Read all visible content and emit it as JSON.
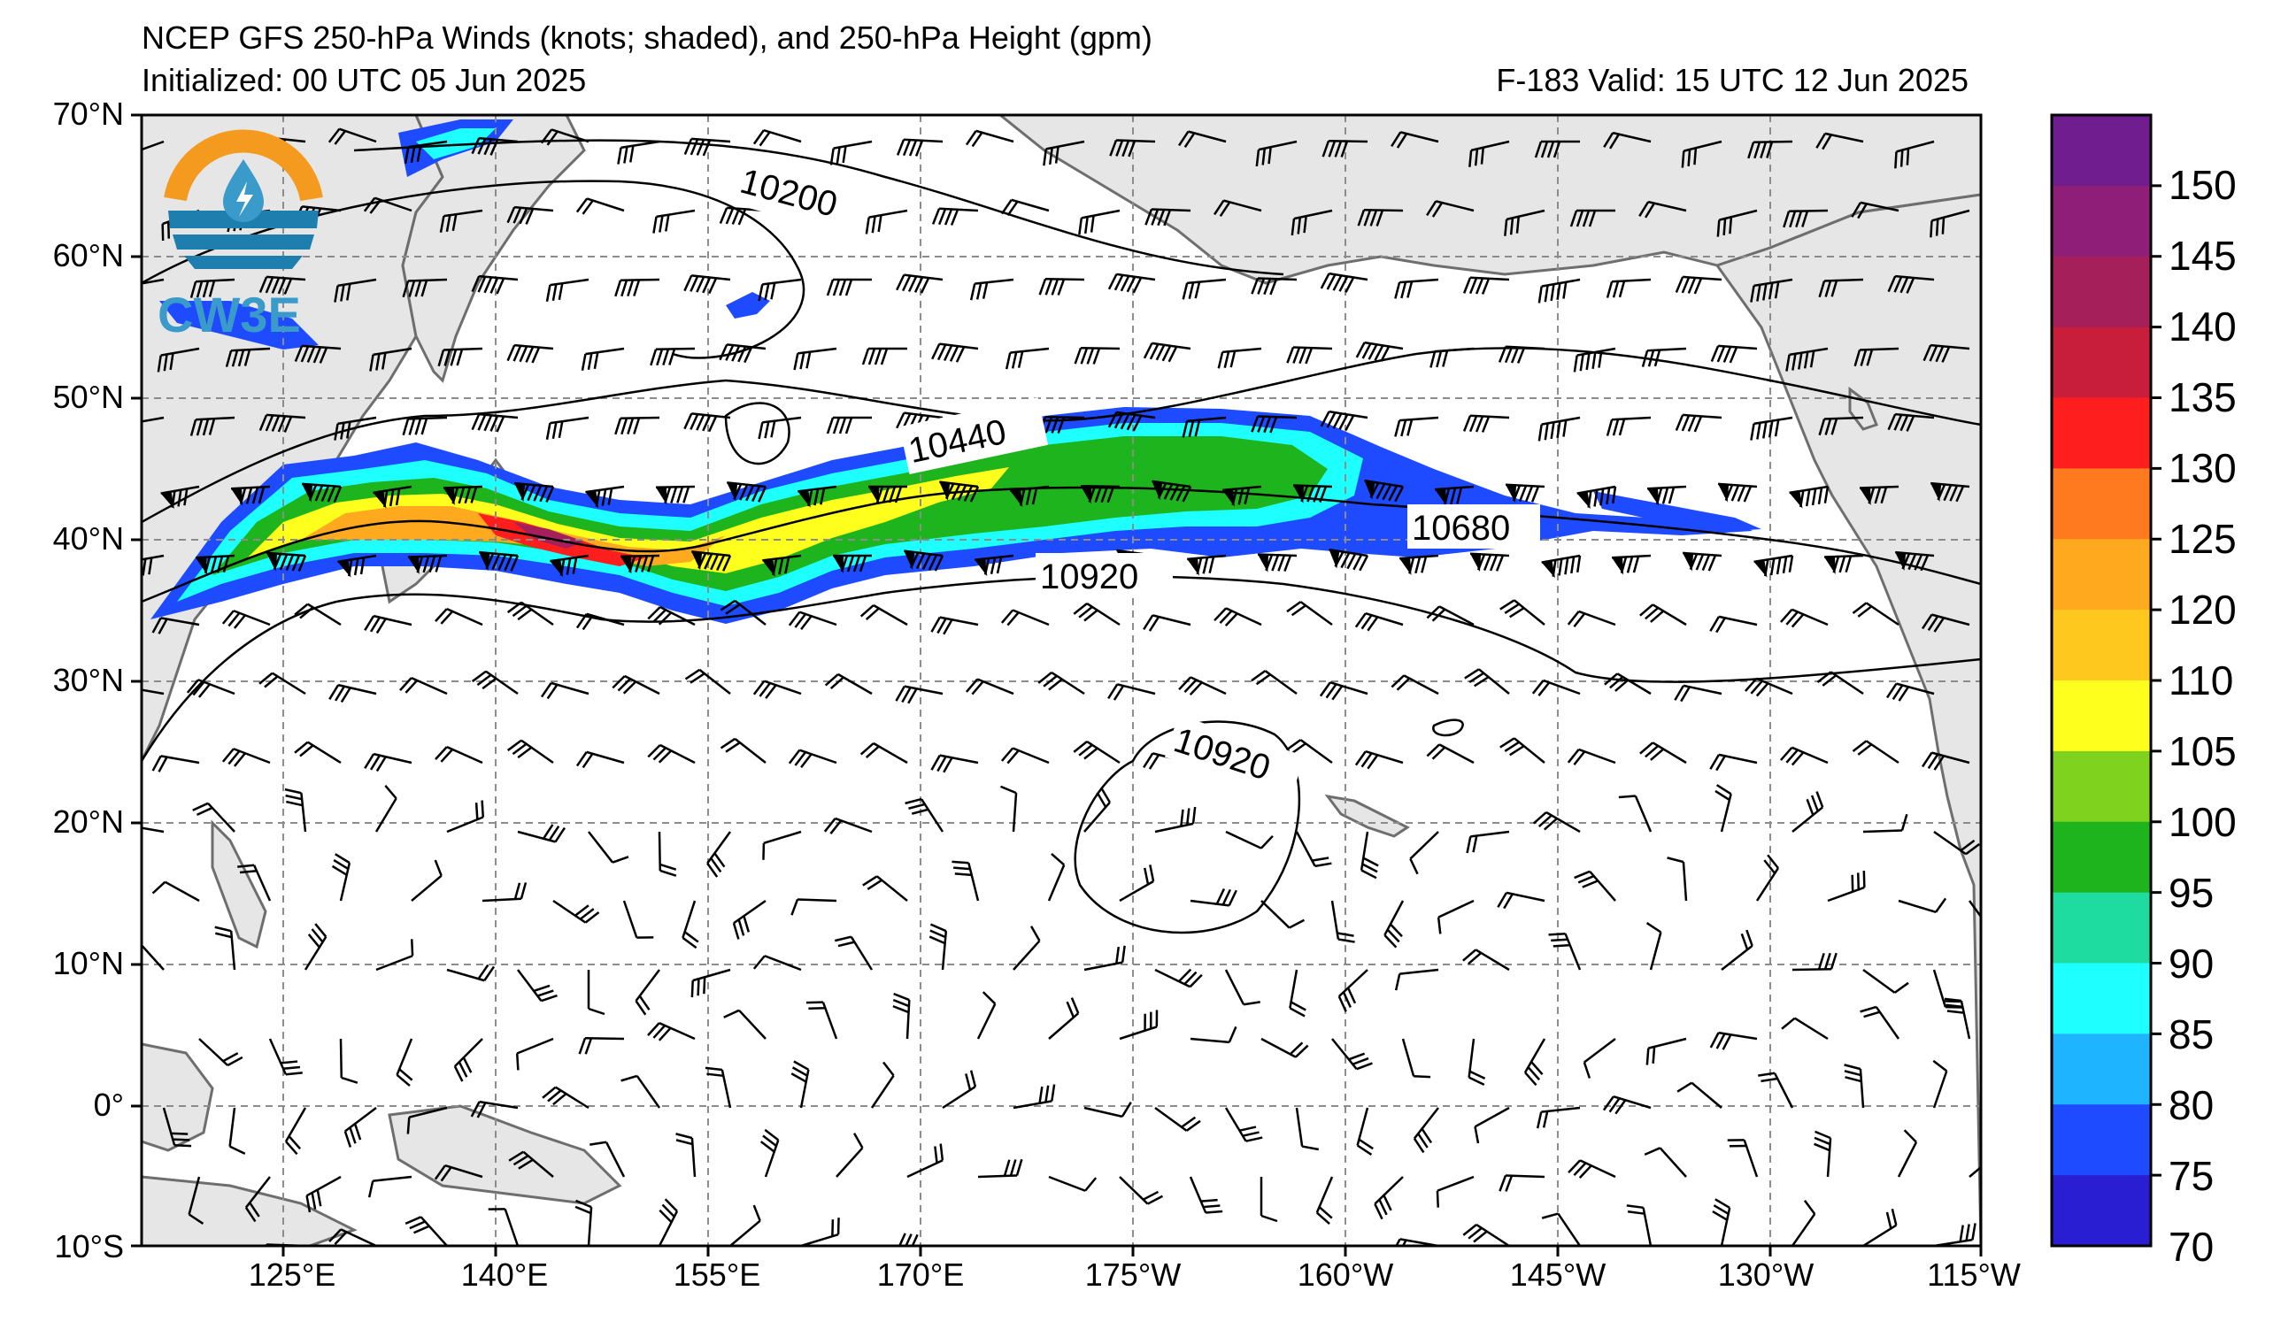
{
  "header": {
    "title": "NCEP GFS 250-hPa Winds (knots; shaded), and 250-hPa Height (gpm)",
    "initialized": "Initialized: 00 UTC 05 Jun 2025",
    "valid": "F-183  Valid: 15 UTC 12 Jun 2025"
  },
  "logo": {
    "text": "CW3E",
    "colors": [
      "#f39a1f",
      "#1e7fae",
      "#3a9ac9"
    ]
  },
  "axes": {
    "lat_labels": [
      "70°N",
      "60°N",
      "50°N",
      "40°N",
      "30°N",
      "20°N",
      "10°N",
      "0°",
      "10°S"
    ],
    "lon_labels": [
      "125°E",
      "140°E",
      "155°E",
      "170°E",
      "175°W",
      "160°W",
      "145°W",
      "130°W",
      "115°W"
    ]
  },
  "contours": {
    "labels": [
      "10200",
      "10440",
      "10680",
      "10920",
      "10920"
    ]
  },
  "colorbar": {
    "labels": [
      "150",
      "145",
      "140",
      "135",
      "130",
      "125",
      "120",
      "110",
      "105",
      "100",
      "95",
      "90",
      "85",
      "80",
      "75",
      "70"
    ],
    "colors": [
      "#6f1d8f",
      "#8e1e78",
      "#a51f5a",
      "#c81e3c",
      "#ff1e1e",
      "#ff7a1e",
      "#ffa91e",
      "#ffc81e",
      "#ffff1e",
      "#7fd21e",
      "#1eb41e",
      "#1edca0",
      "#1effff",
      "#1eb4ff",
      "#1e4bff",
      "#2a1ed2"
    ]
  },
  "colors": {
    "land": "#e6e6e6",
    "coast": "#6e6e6e",
    "grid": "#8c8c8c"
  }
}
